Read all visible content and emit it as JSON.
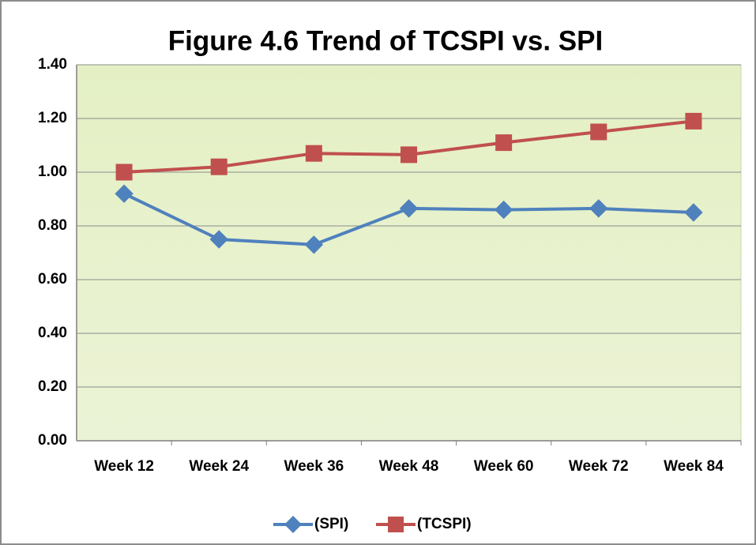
{
  "chart_data": {
    "type": "line",
    "title": "Figure 4.6  Trend of TCSPI vs. SPI",
    "categories": [
      "Week 12",
      "Week 24",
      "Week 36",
      "Week 48",
      "Week 60",
      "Week 72",
      "Week 84"
    ],
    "series": [
      {
        "name": "(SPI)",
        "color": "#4f81bd",
        "marker": "diamond",
        "values": [
          0.92,
          0.75,
          0.73,
          0.865,
          0.86,
          0.865,
          0.85
        ]
      },
      {
        "name": "(TCSPI)",
        "color": "#c0504d",
        "marker": "square",
        "values": [
          1.0,
          1.02,
          1.07,
          1.065,
          1.11,
          1.15,
          1.19
        ]
      }
    ],
    "ylim": [
      0,
      1.4
    ],
    "yticks": [
      {
        "value": 0,
        "label": "0.00"
      },
      {
        "value": 0.2,
        "label": "0.20"
      },
      {
        "value": 0.4,
        "label": "0.40"
      },
      {
        "value": 0.6,
        "label": "0.60"
      },
      {
        "value": 0.8,
        "label": "0.80"
      },
      {
        "value": 1.0,
        "label": "1.00"
      },
      {
        "value": 1.2,
        "label": "1.20"
      },
      {
        "value": 1.4,
        "label": "1.40"
      }
    ],
    "grid": true,
    "legend": "bottom"
  }
}
